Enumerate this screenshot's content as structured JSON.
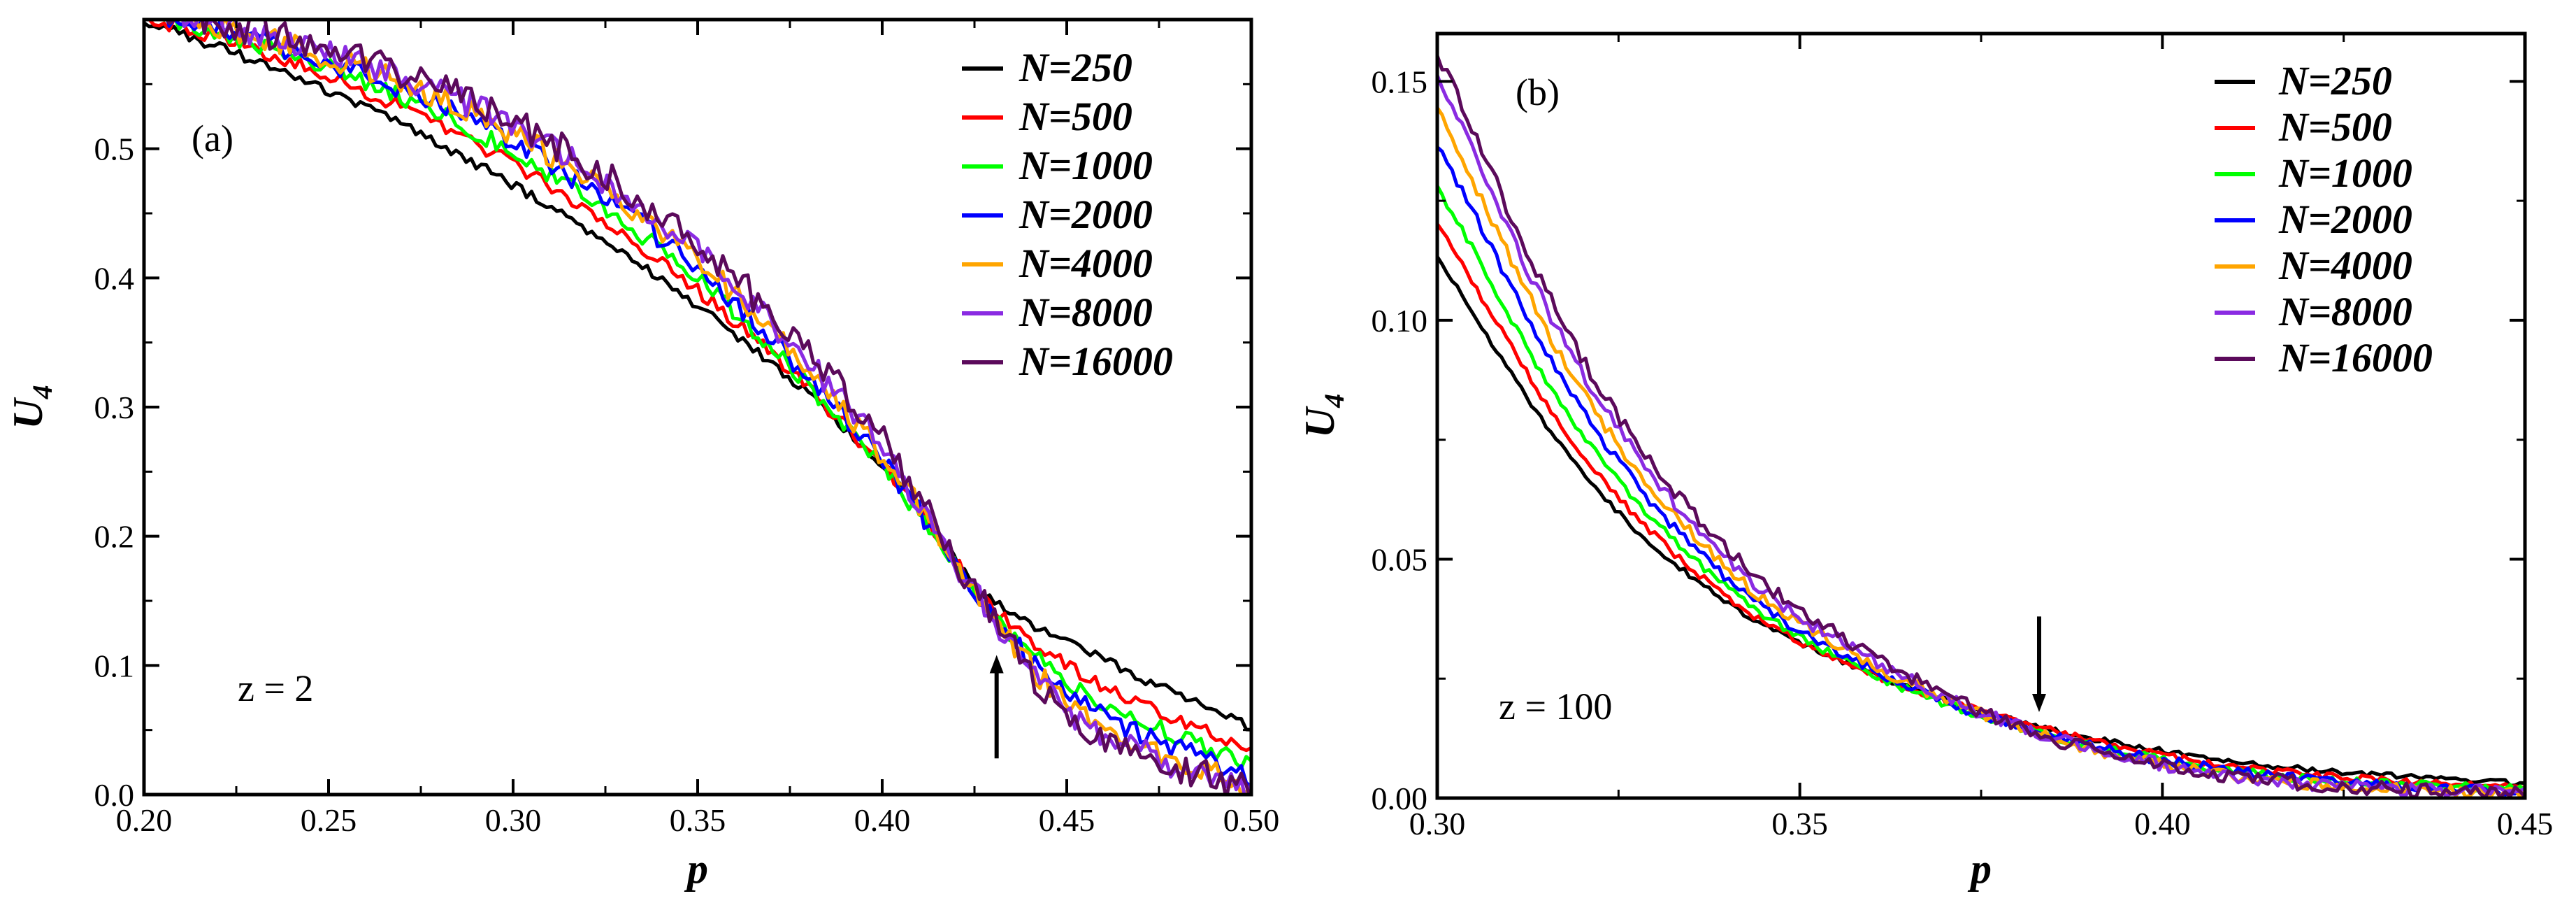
{
  "chart_data": [
    {
      "type": "line",
      "panel_label": "(a)",
      "annotation": "z = 2",
      "xlabel": "p",
      "ylabel": "U",
      "ylabel_subscript": "4",
      "xlim": [
        0.2,
        0.5
      ],
      "ylim": [
        0.0,
        0.6
      ],
      "xticks": [
        0.2,
        0.25,
        0.3,
        0.35,
        0.4,
        0.45,
        0.5
      ],
      "xtick_labels": [
        "0.20",
        "0.25",
        "0.30",
        "0.35",
        "0.40",
        "0.45",
        "0.50"
      ],
      "yticks": [
        0.0,
        0.1,
        0.2,
        0.3,
        0.4,
        0.5
      ],
      "ytick_labels": [
        "0.0",
        "0.1",
        "0.2",
        "0.3",
        "0.4",
        "0.5"
      ],
      "legend_position": "top-right",
      "grid": false,
      "marker": {
        "type": "arrow-up",
        "x": 0.431,
        "y_from": 0.028,
        "y_to": 0.108
      },
      "x": [
        0.2,
        0.25,
        0.3,
        0.35,
        0.4,
        0.43,
        0.45,
        0.5
      ],
      "series": [
        {
          "name": "N=250",
          "color": "#000000",
          "values": [
            0.6,
            0.545,
            0.472,
            0.378,
            0.255,
            0.15,
            0.118,
            0.052
          ]
        },
        {
          "name": "N=500",
          "color": "#ff0000",
          "values": [
            0.603,
            0.556,
            0.488,
            0.39,
            0.255,
            0.145,
            0.1,
            0.035
          ]
        },
        {
          "name": "N=1000",
          "color": "#00ff00",
          "values": [
            0.605,
            0.563,
            0.497,
            0.399,
            0.253,
            0.14,
            0.088,
            0.022
          ]
        },
        {
          "name": "N=2000",
          "color": "#0000ff",
          "values": [
            0.607,
            0.567,
            0.505,
            0.407,
            0.258,
            0.138,
            0.08,
            0.012
          ]
        },
        {
          "name": "N=4000",
          "color": "#ffa500",
          "values": [
            0.608,
            0.571,
            0.512,
            0.413,
            0.262,
            0.136,
            0.072,
            0.006
          ]
        },
        {
          "name": "N=8000",
          "color": "#8a2be2",
          "values": [
            0.609,
            0.575,
            0.518,
            0.42,
            0.268,
            0.136,
            0.066,
            0.003
          ]
        },
        {
          "name": "N=16000",
          "color": "#5b0a5b",
          "values": [
            0.61,
            0.577,
            0.522,
            0.425,
            0.275,
            0.136,
            0.062,
            0.002
          ]
        }
      ]
    },
    {
      "type": "line",
      "panel_label": "(b)",
      "annotation": "z = 100",
      "xlabel": "p",
      "ylabel": "U",
      "ylabel_subscript": "4",
      "xlim": [
        0.3,
        0.45
      ],
      "ylim": [
        0.0,
        0.16
      ],
      "xticks": [
        0.3,
        0.35,
        0.4,
        0.45
      ],
      "xtick_labels": [
        "0.30",
        "0.35",
        "0.40",
        "0.45"
      ],
      "yticks": [
        0.0,
        0.05,
        0.1,
        0.15
      ],
      "ytick_labels": [
        "0.00",
        "0.05",
        "0.10",
        "0.15"
      ],
      "legend_position": "top-right",
      "grid": false,
      "marker": {
        "type": "arrow-down",
        "x": 0.383,
        "y_from": 0.038,
        "y_to": 0.018
      },
      "x": [
        0.3,
        0.32,
        0.34,
        0.36,
        0.38,
        0.4,
        0.42,
        0.45
      ],
      "series": [
        {
          "name": "N=250",
          "color": "#000000",
          "values": [
            0.113,
            0.068,
            0.041,
            0.026,
            0.016,
            0.01,
            0.006,
            0.003
          ]
        },
        {
          "name": "N=500",
          "color": "#ff0000",
          "values": [
            0.12,
            0.072,
            0.042,
            0.026,
            0.016,
            0.009,
            0.005,
            0.002
          ]
        },
        {
          "name": "N=1000",
          "color": "#00ff00",
          "values": [
            0.128,
            0.076,
            0.044,
            0.026,
            0.015,
            0.008,
            0.004,
            0.002
          ]
        },
        {
          "name": "N=2000",
          "color": "#0000ff",
          "values": [
            0.137,
            0.081,
            0.046,
            0.027,
            0.015,
            0.008,
            0.004,
            0.001
          ]
        },
        {
          "name": "N=4000",
          "color": "#ffa500",
          "values": [
            0.144,
            0.085,
            0.048,
            0.028,
            0.015,
            0.007,
            0.003,
            0.001
          ]
        },
        {
          "name": "N=8000",
          "color": "#8a2be2",
          "values": [
            0.151,
            0.089,
            0.05,
            0.029,
            0.015,
            0.007,
            0.003,
            0.001
          ]
        },
        {
          "name": "N=16000",
          "color": "#5b0a5b",
          "values": [
            0.156,
            0.092,
            0.052,
            0.03,
            0.015,
            0.007,
            0.003,
            0.001
          ]
        }
      ]
    }
  ]
}
